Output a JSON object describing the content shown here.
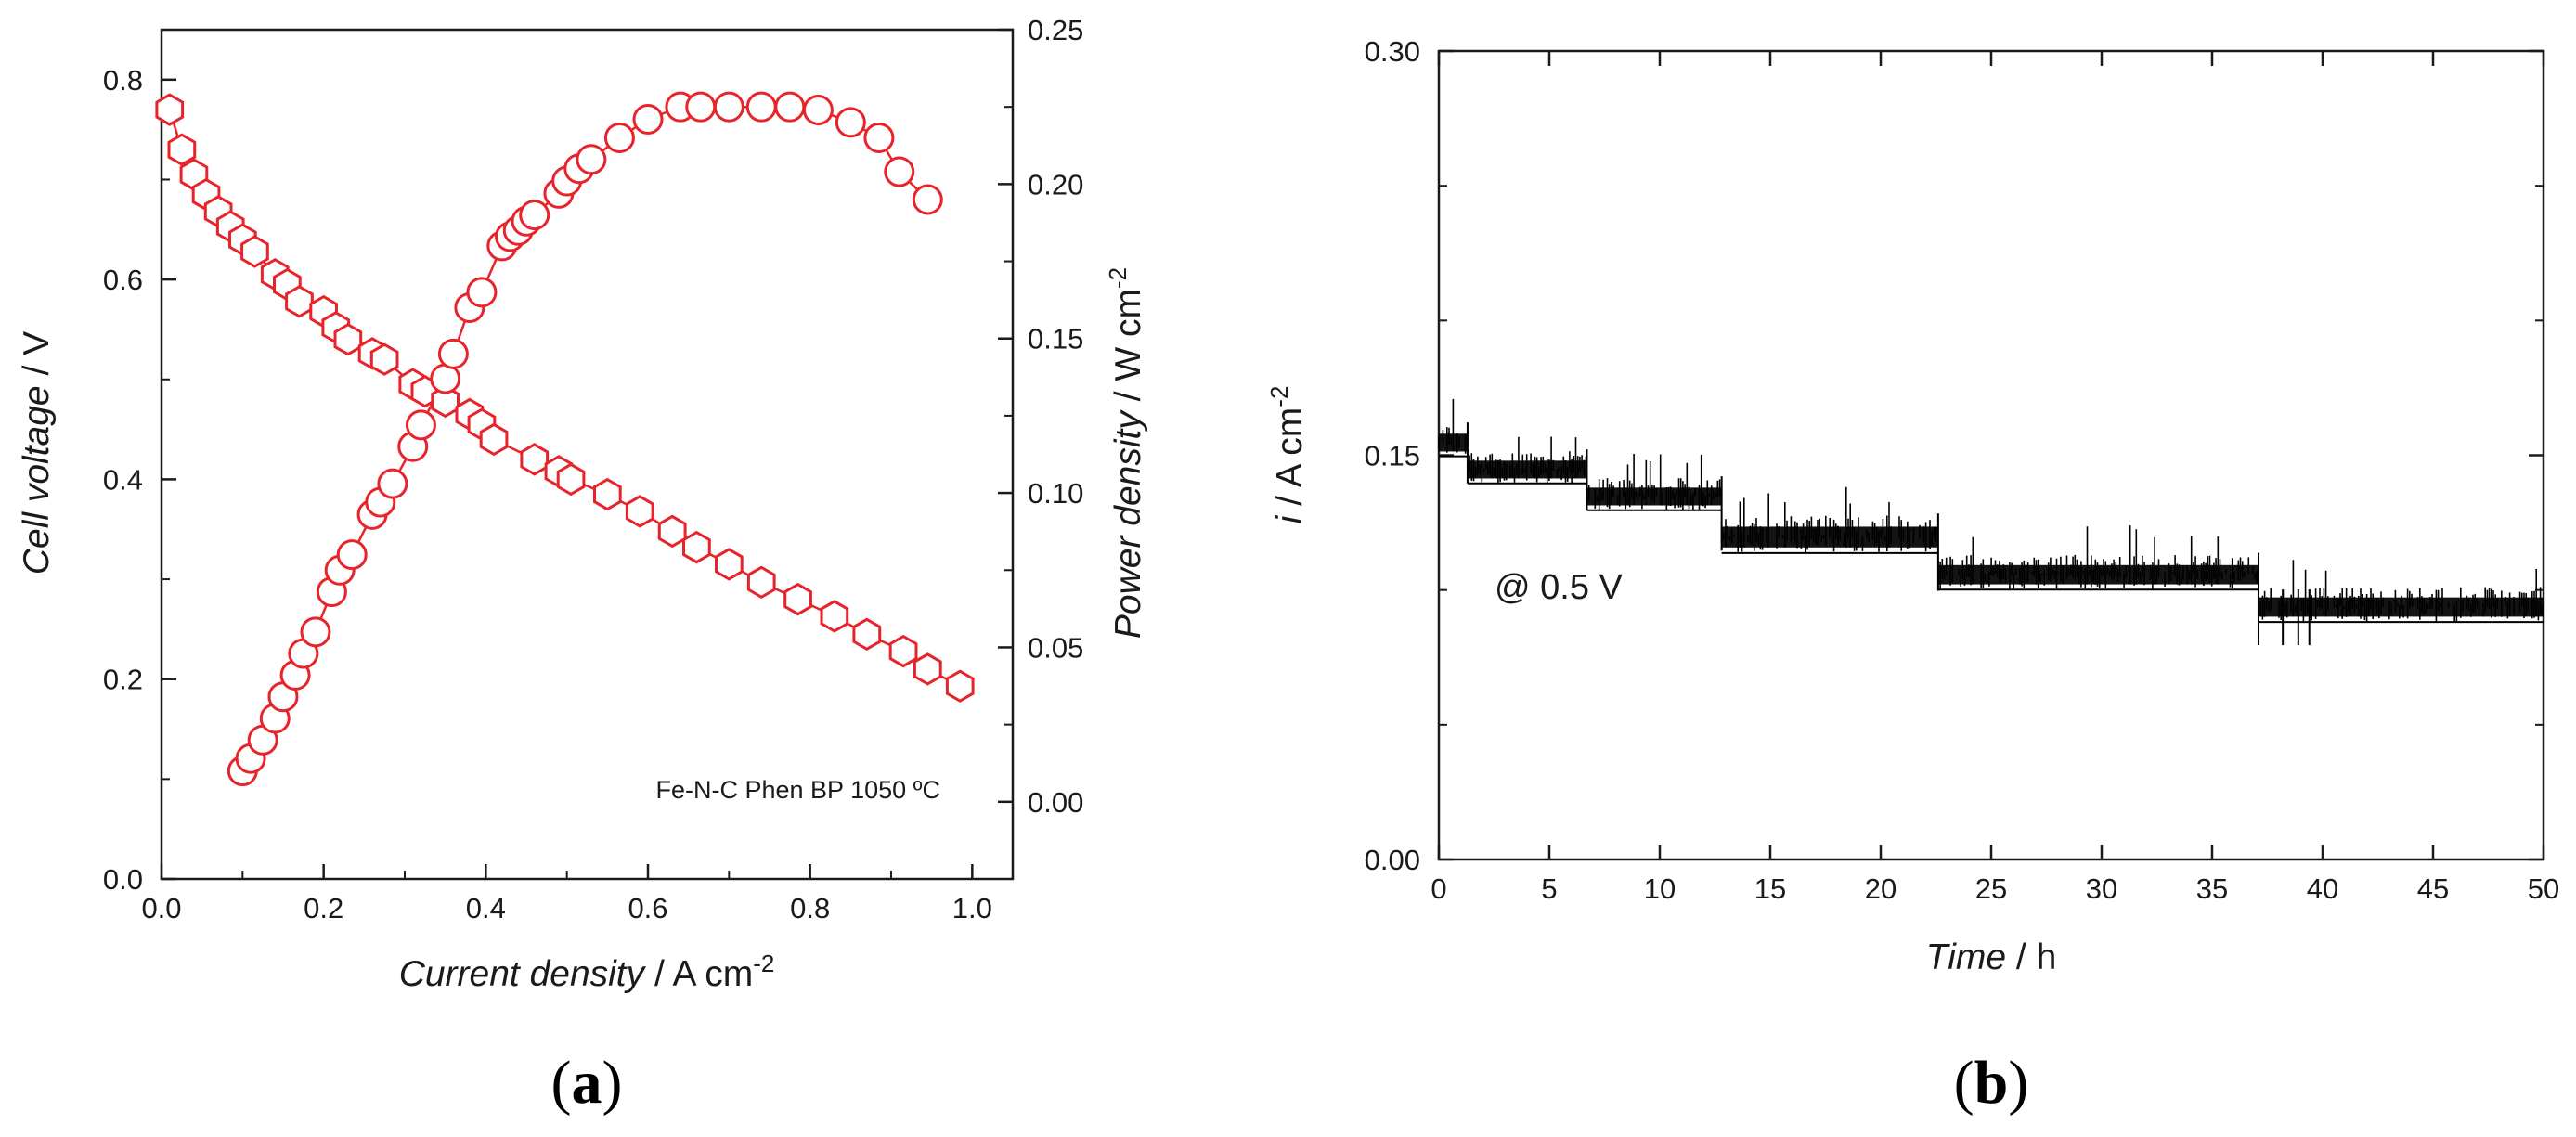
{
  "chart_data": [
    {
      "panel": "(a)",
      "type": "scatter",
      "annotation": "Fe-N-C Phen BP 1050 ºC",
      "xlabel": {
        "italic": "Current density",
        "rest": " / A cm",
        "sup": "-2"
      },
      "ylabel_left": {
        "italic": "Cell voltage",
        "rest": " / V"
      },
      "ylabel_right": {
        "italic": "Power density",
        "rest": " / W cm",
        "sup": "-2"
      },
      "xlim": [
        0,
        1.05
      ],
      "ylim_left": [
        0,
        0.85
      ],
      "ylim_right": [
        -0.025,
        0.25
      ],
      "x_ticks": [
        "0.0",
        "0.2",
        "0.4",
        "0.6",
        "0.8",
        "1.0"
      ],
      "y_ticks_left": [
        "0.0",
        "0.2",
        "0.4",
        "0.6",
        "0.8"
      ],
      "y_ticks_right": [
        "0.00",
        "0.05",
        "0.10",
        "0.15",
        "0.20",
        "0.25"
      ],
      "series": [
        {
          "name": "Cell voltage",
          "axis": "left",
          "marker": "hexagon",
          "color": "#e8232a",
          "x": [
            0.01,
            0.025,
            0.04,
            0.055,
            0.07,
            0.085,
            0.1,
            0.115,
            0.14,
            0.155,
            0.17,
            0.2,
            0.215,
            0.23,
            0.26,
            0.275,
            0.31,
            0.325,
            0.35,
            0.38,
            0.395,
            0.41,
            0.46,
            0.49,
            0.505,
            0.55,
            0.59,
            0.63,
            0.66,
            0.7,
            0.74,
            0.785,
            0.83,
            0.87,
            0.915,
            0.945,
            0.985
          ],
          "y": [
            0.77,
            0.73,
            0.705,
            0.685,
            0.668,
            0.653,
            0.64,
            0.628,
            0.605,
            0.595,
            0.578,
            0.568,
            0.552,
            0.54,
            0.526,
            0.52,
            0.495,
            0.488,
            0.478,
            0.465,
            0.455,
            0.44,
            0.42,
            0.408,
            0.4,
            0.385,
            0.368,
            0.348,
            0.332,
            0.315,
            0.297,
            0.28,
            0.263,
            0.245,
            0.228,
            0.21,
            0.193
          ]
        },
        {
          "name": "Power density",
          "axis": "right",
          "marker": "circle",
          "color": "#e8232a",
          "x": [
            0.1,
            0.11,
            0.125,
            0.14,
            0.15,
            0.165,
            0.175,
            0.19,
            0.21,
            0.22,
            0.235,
            0.26,
            0.27,
            0.285,
            0.31,
            0.32,
            0.35,
            0.36,
            0.38,
            0.395,
            0.42,
            0.43,
            0.44,
            0.45,
            0.46,
            0.49,
            0.5,
            0.515,
            0.53,
            0.565,
            0.6,
            0.64,
            0.665,
            0.7,
            0.74,
            0.775,
            0.81,
            0.85,
            0.885,
            0.91,
            0.945
          ],
          "y": [
            0.01,
            0.014,
            0.02,
            0.027,
            0.034,
            0.041,
            0.048,
            0.055,
            0.068,
            0.075,
            0.08,
            0.093,
            0.097,
            0.103,
            0.115,
            0.122,
            0.137,
            0.145,
            0.16,
            0.165,
            0.18,
            0.183,
            0.185,
            0.188,
            0.19,
            0.197,
            0.201,
            0.205,
            0.208,
            0.215,
            0.221,
            0.225,
            0.225,
            0.225,
            0.225,
            0.225,
            0.224,
            0.22,
            0.215,
            0.204,
            0.195
          ]
        }
      ]
    },
    {
      "panel": "(b)",
      "type": "line",
      "annotation": "@ 0.5 V",
      "xlabel": {
        "italic": "Time",
        "rest": " / h"
      },
      "ylabel": {
        "italic": "i",
        "rest": " / A cm",
        "sup": "-2"
      },
      "xlim": [
        0,
        50
      ],
      "ylim": [
        0,
        0.3
      ],
      "x_ticks": [
        "0",
        "5",
        "10",
        "15",
        "20",
        "25",
        "30",
        "35",
        "40",
        "45",
        "50"
      ],
      "y_ticks": [
        "0.00",
        "0.15",
        "0.30"
      ],
      "series": [
        {
          "name": "i @ 0.5 V",
          "color": "#000000",
          "segments": [
            {
              "start": 0,
              "end": 1.3,
              "value": 0.155,
              "noise": 0.012
            },
            {
              "start": 1.3,
              "end": 6.7,
              "value": 0.145,
              "noise": 0.012
            },
            {
              "start": 6.7,
              "end": 12.8,
              "value": 0.135,
              "noise": 0.012
            },
            {
              "start": 12.8,
              "end": 22.6,
              "value": 0.12,
              "noise": 0.014
            },
            {
              "start": 22.6,
              "end": 37.1,
              "value": 0.106,
              "noise": 0.013
            },
            {
              "start": 37.1,
              "end": 50,
              "value": 0.094,
              "noise": 0.013
            }
          ]
        }
      ]
    }
  ]
}
